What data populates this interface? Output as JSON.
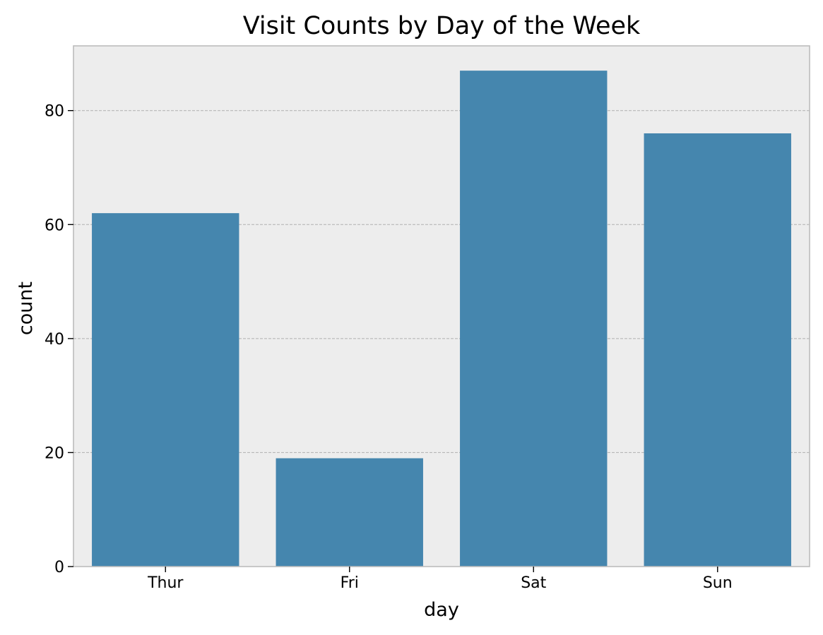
{
  "chart_data": {
    "type": "bar",
    "title": "Visit Counts by Day of the Week",
    "xlabel": "day",
    "ylabel": "count",
    "categories": [
      "Thur",
      "Fri",
      "Sat",
      "Sun"
    ],
    "values": [
      62,
      19,
      87,
      76
    ],
    "ylim": [
      0,
      91.35
    ],
    "yticks": [
      0,
      20,
      40,
      60,
      80
    ],
    "grid": "horizontal",
    "colors": {
      "bar": "#4586ae",
      "plot_background": "#ededed",
      "grid": "#b0b0b0",
      "spine": "#bcbcbc"
    }
  }
}
